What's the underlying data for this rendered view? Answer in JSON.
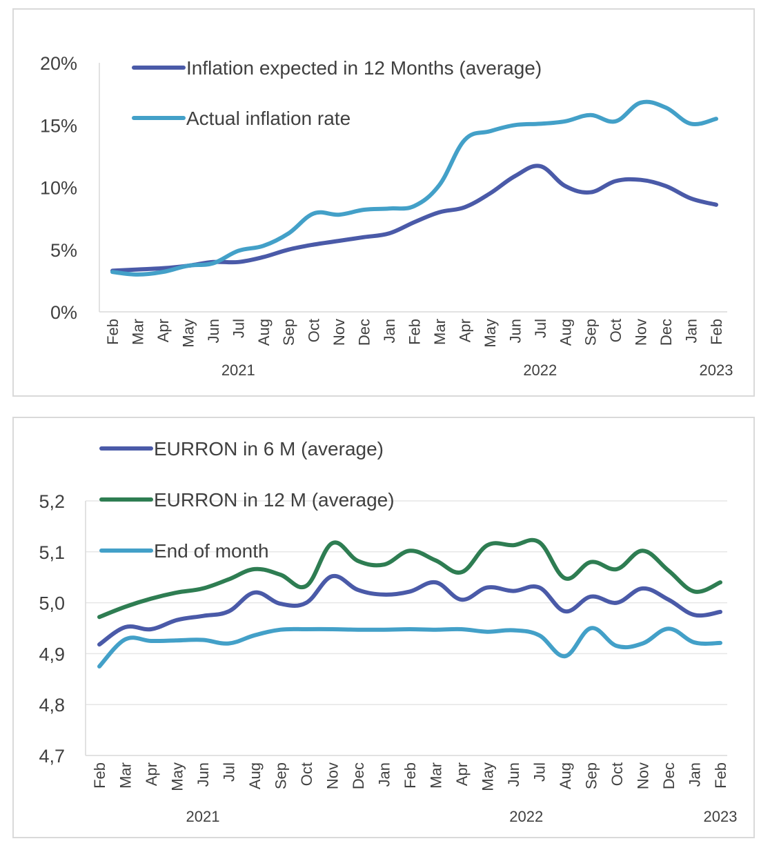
{
  "chart_data": [
    {
      "type": "line",
      "title": "",
      "xlabel": "",
      "ylabel": "",
      "ylim": [
        0,
        20
      ],
      "y_ticks": [
        "0%",
        "5%",
        "10%",
        "15%",
        "20%"
      ],
      "grid": false,
      "legend_placement": "top-left",
      "categories": [
        "Feb",
        "Mar",
        "Apr",
        "May",
        "Jun",
        "Jul",
        "Aug",
        "Sep",
        "Oct",
        "Nov",
        "Dec",
        "Jan",
        "Feb",
        "Mar",
        "Apr",
        "May",
        "Jun",
        "Jul",
        "Aug",
        "Sep",
        "Oct",
        "Nov",
        "Dec",
        "Jan",
        "Feb"
      ],
      "year_labels": [
        {
          "label": "2021",
          "at": 5
        },
        {
          "label": "2022",
          "at": 17
        },
        {
          "label": "2023",
          "at": 24
        }
      ],
      "series": [
        {
          "name": "Inflation expected in 12 Months (average)",
          "color": "#4a5aa8",
          "values": [
            3.3,
            3.4,
            3.5,
            3.7,
            4.0,
            4.0,
            4.4,
            5.0,
            5.4,
            5.7,
            6.0,
            6.3,
            7.2,
            8.0,
            8.4,
            9.5,
            10.9,
            11.7,
            10.1,
            9.6,
            10.5,
            10.6,
            10.1,
            9.1,
            8.6
          ]
        },
        {
          "name": "Actual inflation rate",
          "color": "#43a0c8",
          "values": [
            3.2,
            3.0,
            3.2,
            3.7,
            3.9,
            4.9,
            5.3,
            6.3,
            7.9,
            7.8,
            8.2,
            8.3,
            8.5,
            10.2,
            13.8,
            14.5,
            15.0,
            15.1,
            15.3,
            15.8,
            15.3,
            16.8,
            16.4,
            15.1,
            15.5
          ]
        }
      ]
    },
    {
      "type": "line",
      "title": "",
      "xlabel": "",
      "ylabel": "",
      "ylim": [
        4.7,
        5.2
      ],
      "y_ticks": [
        "4,7",
        "4,8",
        "4,9",
        "5,0",
        "5,1",
        "5,2"
      ],
      "grid": true,
      "legend_placement": "top-left",
      "categories": [
        "Feb",
        "Mar",
        "Apr",
        "May",
        "Jun",
        "Jul",
        "Aug",
        "Sep",
        "Oct",
        "Nov",
        "Dec",
        "Jan",
        "Feb",
        "Mar",
        "Apr",
        "May",
        "Jun",
        "Jul",
        "Aug",
        "Sep",
        "Oct",
        "Nov",
        "Dec",
        "Jan",
        "Feb"
      ],
      "year_labels": [
        {
          "label": "2021",
          "at": 4
        },
        {
          "label": "2022",
          "at": 16.5
        },
        {
          "label": "2023",
          "at": 24
        }
      ],
      "series": [
        {
          "name": "EURRON in 6 M (average)",
          "color": "#4a5aa8",
          "values": [
            4.918,
            4.952,
            4.948,
            4.966,
            4.974,
            4.983,
            5.02,
            4.998,
            5.0,
            5.052,
            5.025,
            5.016,
            5.022,
            5.04,
            5.006,
            5.03,
            5.023,
            5.03,
            4.983,
            5.012,
            5.0,
            5.028,
            5.006,
            4.976,
            4.982
          ]
        },
        {
          "name": "EURRON in 12 M (average)",
          "color": "#2e7d52",
          "values": [
            4.972,
            4.992,
            5.008,
            5.02,
            5.028,
            5.046,
            5.066,
            5.055,
            5.033,
            5.117,
            5.082,
            5.075,
            5.102,
            5.083,
            5.06,
            5.113,
            5.113,
            5.119,
            5.048,
            5.08,
            5.066,
            5.102,
            5.063,
            5.022,
            5.04
          ]
        },
        {
          "name": "End of month",
          "color": "#43a0c8",
          "values": [
            4.875,
            4.928,
            4.925,
            4.926,
            4.927,
            4.92,
            4.936,
            4.947,
            4.948,
            4.948,
            4.947,
            4.947,
            4.948,
            4.947,
            4.948,
            4.943,
            4.946,
            4.936,
            4.895,
            4.95,
            4.915,
            4.92,
            4.949,
            4.922,
            4.921
          ]
        }
      ]
    }
  ]
}
